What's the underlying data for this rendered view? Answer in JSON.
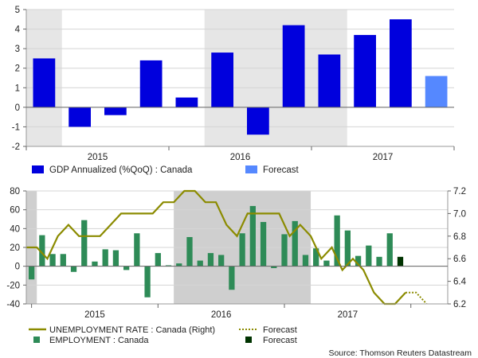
{
  "chart_data": [
    {
      "type": "bar",
      "series": [
        {
          "name": "GDP Annualized (%QoQ) : Canada",
          "color": "#0000dd",
          "quarters": [
            0,
            1,
            2,
            3,
            4,
            5,
            6,
            7,
            8,
            9,
            10
          ],
          "values": [
            2.5,
            -1.0,
            -0.4,
            2.4,
            0.5,
            2.8,
            -1.4,
            4.2,
            2.7,
            3.7,
            4.5
          ]
        },
        {
          "name": "Forecast",
          "color": "#5588ff",
          "quarters": [
            11
          ],
          "values": [
            1.6
          ]
        }
      ],
      "ylim": [
        -2,
        5
      ],
      "yticks": [
        -2,
        -1,
        0,
        1,
        2,
        3,
        4,
        5
      ],
      "ytick_labels": [
        "-2",
        "-1",
        "0",
        "1",
        "2",
        "3",
        "4",
        "5"
      ],
      "xlabels": [
        "2015",
        "2016",
        "2017"
      ],
      "shaded_periods": [
        [
          -0.5,
          0.5
        ],
        [
          4.5,
          8.5
        ]
      ],
      "shade_color": "#e6e6e6"
    },
    {
      "type": "bar",
      "employment": {
        "name": "EMPLOYMENT : Canada",
        "color": "#2e8b57",
        "values": [
          -14,
          33,
          13,
          13,
          -6,
          49,
          5,
          18,
          17,
          -4,
          35,
          -33,
          14,
          1,
          3,
          31,
          6,
          14,
          12,
          -25,
          35,
          64,
          47,
          -2,
          34,
          48,
          12,
          19,
          6,
          54,
          38,
          11,
          22,
          10,
          35
        ]
      },
      "employment_forecast": {
        "name": "Forecast",
        "color": "#003300",
        "values": [
          10
        ]
      },
      "unemployment": {
        "name": "UNEMPLOYMENT RATE : Canada (Right)",
        "color": "#8b8b00",
        "values": [
          6.7,
          6.7,
          6.6,
          6.8,
          6.9,
          6.8,
          6.8,
          6.8,
          6.9,
          7.0,
          7.0,
          7.0,
          7.0,
          7.1,
          7.1,
          7.2,
          7.2,
          7.1,
          7.1,
          6.9,
          6.8,
          7.0,
          7.0,
          7.0,
          7.0,
          6.8,
          6.9,
          6.8,
          6.6,
          6.7,
          6.5,
          6.6,
          6.5,
          6.3,
          6.2,
          6.2,
          6.3
        ]
      },
      "unemployment_forecast": {
        "name": "Forecast",
        "color": "#8b8b00",
        "values": [
          6.3,
          6.2
        ]
      },
      "left_ylim": [
        -40,
        80
      ],
      "left_yticks": [
        -40,
        -20,
        0,
        20,
        40,
        60,
        80
      ],
      "left_ytick_labels": [
        "-40",
        "-20",
        "0",
        "20",
        "40",
        "60",
        "80"
      ],
      "right_ylim": [
        6.2,
        7.2
      ],
      "right_yticks": [
        6.2,
        6.4,
        6.6,
        6.8,
        7.0,
        7.2
      ],
      "right_ytick_labels": [
        "6.2",
        "6.4",
        "6.6",
        "6.8",
        "7.0",
        "7.2"
      ],
      "xlabels": [
        "2015",
        "2016",
        "2017"
      ],
      "shaded_periods": [
        [
          -0.5,
          0.5
        ],
        [
          13.5,
          26.5
        ]
      ],
      "shade_color": "#cfcfcf"
    }
  ],
  "legend1": {
    "gdp_label": "GDP Annualized (%QoQ) : Canada",
    "forecast_label": "Forecast"
  },
  "legend2": {
    "unemp_label": "UNEMPLOYMENT RATE : Canada (Right)",
    "unemp_forecast_label": "Forecast",
    "emp_label": "EMPLOYMENT : Canada",
    "emp_forecast_label": "Forecast"
  },
  "source": "Source: Thomson Reuters Datastream"
}
